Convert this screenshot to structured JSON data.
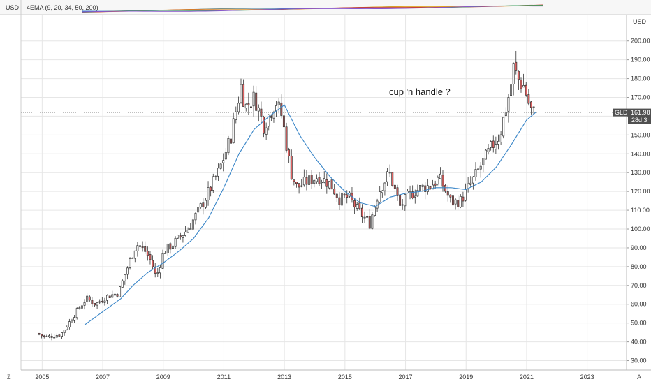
{
  "toolbar": {
    "currency_left": "USD",
    "indicator_label": "4EMA (9, 20, 34, 50, 200)",
    "currency_right": "USD"
  },
  "annotation": "cup 'n handle ?",
  "price_tag": {
    "symbol": "GLD",
    "price": "161.98",
    "countdown": "28d 3h",
    "value": 161.98
  },
  "corners": {
    "left": "Z",
    "right": "A"
  },
  "colors": {
    "up": "#ffffff",
    "down": "#e06363",
    "wick": "#333333",
    "ema": "#3a86c8",
    "grid": "#e6e6e6",
    "tag": "#505050"
  },
  "chart_data": {
    "type": "candlestick",
    "interval": "1 month",
    "ylim": [
      25,
      214
    ],
    "xlim": [
      2004.3,
      2024.3
    ],
    "y_ticks": [
      "30.00",
      "40.00",
      "50.00",
      "60.00",
      "70.00",
      "80.00",
      "90.00",
      "100.00",
      "110.00",
      "120.00",
      "130.00",
      "140.00",
      "150.00",
      "160.00",
      "170.00",
      "180.00",
      "190.00",
      "200.00"
    ],
    "x_ticks": [
      "2005",
      "2007",
      "2009",
      "2011",
      "2013",
      "2015",
      "2017",
      "2019",
      "2021",
      "2023"
    ],
    "anchors": [
      [
        2004.9,
        44.5
      ],
      [
        2005.2,
        42.5
      ],
      [
        2005.7,
        44
      ],
      [
        2006.05,
        52
      ],
      [
        2006.3,
        58
      ],
      [
        2006.55,
        63
      ],
      [
        2006.85,
        60
      ],
      [
        2007.2,
        64
      ],
      [
        2007.6,
        66
      ],
      [
        2008.0,
        84
      ],
      [
        2008.2,
        92
      ],
      [
        2008.5,
        88
      ],
      [
        2008.7,
        82
      ],
      [
        2008.85,
        74
      ],
      [
        2009.1,
        88
      ],
      [
        2009.4,
        92
      ],
      [
        2009.9,
        100
      ],
      [
        2010.4,
        114
      ],
      [
        2010.9,
        130
      ],
      [
        2011.3,
        148
      ],
      [
        2011.65,
        176
      ],
      [
        2011.8,
        165
      ],
      [
        2012.1,
        170
      ],
      [
        2012.4,
        155
      ],
      [
        2012.8,
        168
      ],
      [
        2013.0,
        160
      ],
      [
        2013.3,
        130
      ],
      [
        2013.5,
        122
      ],
      [
        2013.8,
        125
      ],
      [
        2014.2,
        128
      ],
      [
        2014.6,
        124
      ],
      [
        2014.9,
        116
      ],
      [
        2015.2,
        117
      ],
      [
        2015.5,
        110
      ],
      [
        2015.9,
        103
      ],
      [
        2016.2,
        120
      ],
      [
        2016.55,
        130
      ],
      [
        2016.9,
        112
      ],
      [
        2017.2,
        118
      ],
      [
        2017.6,
        122
      ],
      [
        2017.9,
        123
      ],
      [
        2018.2,
        127
      ],
      [
        2018.6,
        114
      ],
      [
        2018.9,
        115
      ],
      [
        2019.2,
        123
      ],
      [
        2019.55,
        133
      ],
      [
        2019.9,
        143
      ],
      [
        2020.2,
        150
      ],
      [
        2020.55,
        175
      ],
      [
        2020.65,
        186
      ],
      [
        2020.85,
        178
      ],
      [
        2021.0,
        176
      ],
      [
        2021.2,
        164
      ],
      [
        2021.3,
        162
      ]
    ],
    "ema20_anchors": [
      [
        2006.4,
        49
      ],
      [
        2007.0,
        56
      ],
      [
        2007.6,
        63
      ],
      [
        2008.0,
        70
      ],
      [
        2008.5,
        77
      ],
      [
        2009.0,
        82
      ],
      [
        2009.5,
        88
      ],
      [
        2010.0,
        95
      ],
      [
        2010.5,
        106
      ],
      [
        2011.0,
        122
      ],
      [
        2011.5,
        140
      ],
      [
        2012.0,
        153
      ],
      [
        2012.5,
        160
      ],
      [
        2013.0,
        166
      ],
      [
        2013.5,
        150
      ],
      [
        2014.0,
        138
      ],
      [
        2014.5,
        128
      ],
      [
        2015.0,
        120
      ],
      [
        2015.5,
        114
      ],
      [
        2016.0,
        112
      ],
      [
        2016.5,
        117
      ],
      [
        2017.0,
        119
      ],
      [
        2017.5,
        120
      ],
      [
        2018.0,
        122
      ],
      [
        2018.5,
        122
      ],
      [
        2019.0,
        121
      ],
      [
        2019.5,
        125
      ],
      [
        2020.0,
        133
      ],
      [
        2020.5,
        145
      ],
      [
        2021.0,
        158
      ],
      [
        2021.3,
        162
      ]
    ]
  }
}
